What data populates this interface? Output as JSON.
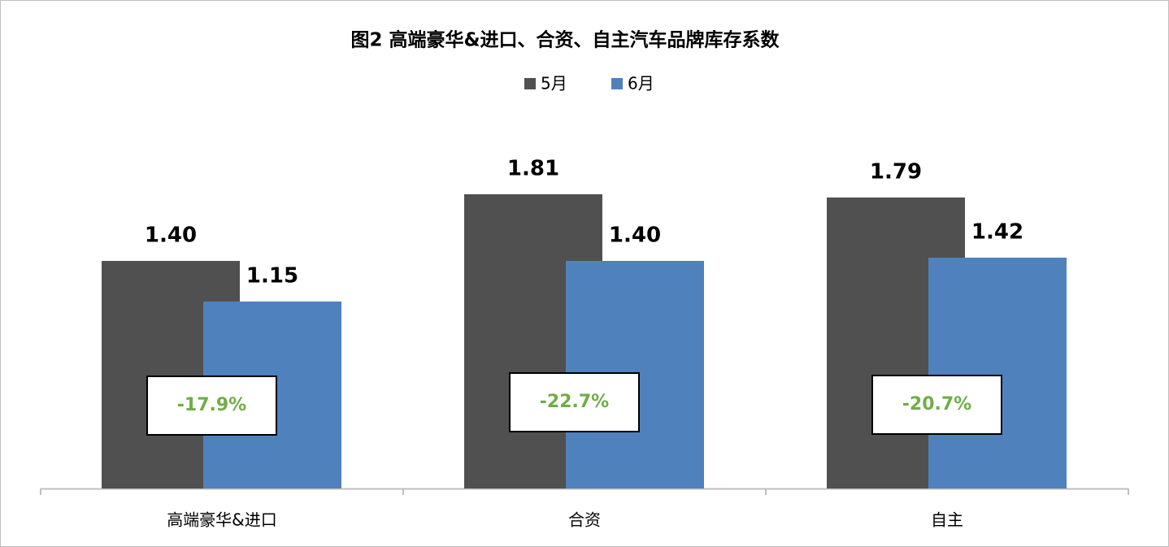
{
  "chart_data": {
    "type": "bar",
    "title": "图2 高端豪华&进口、合资、自主汽车品牌库存系数",
    "categories": [
      "高端豪华&进口",
      "合资",
      "自主"
    ],
    "series": [
      {
        "name": "5月",
        "color": "#505050",
        "values": [
          1.4,
          1.81,
          1.79
        ],
        "value_labels": [
          "1.40",
          "1.81",
          "1.79"
        ]
      },
      {
        "name": "6月",
        "color": "#4f81bd",
        "values": [
          1.15,
          1.4,
          1.42
        ],
        "value_labels": [
          "1.15",
          "1.40",
          "1.42"
        ]
      }
    ],
    "annotations": [
      "-17.9%",
      "-22.7%",
      "-20.7%"
    ],
    "annotation_color": "#70ad47",
    "ylim": [
      0,
      2.5
    ]
  }
}
